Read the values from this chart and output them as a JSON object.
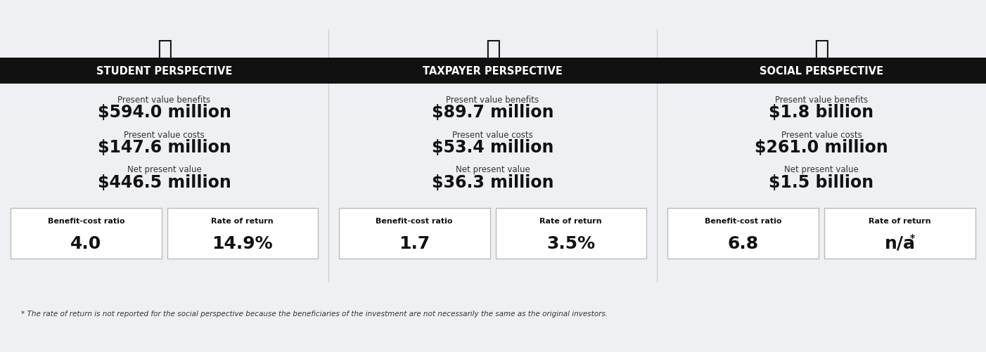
{
  "bg_color": "#eef0f3",
  "header_bg": "#111111",
  "header_text_color": "#ffffff",
  "white": "#ffffff",
  "dark": "#111111",
  "perspectives": [
    "STUDENT PERSPECTIVE",
    "TAXPAYER PERSPECTIVE",
    "SOCIAL PERSPECTIVE"
  ],
  "pv_benefits_label": "Present value benefits",
  "pv_costs_label": "Present value costs",
  "npv_label": "Net present value",
  "bcr_label": "Benefit-cost ratio",
  "ror_label": "Rate of return",
  "pv_benefits": [
    "$594.0 million",
    "$89.7 million",
    "$1.8 billion"
  ],
  "pv_costs": [
    "$147.6 million",
    "$53.4 million",
    "$261.0 million"
  ],
  "npv": [
    "$446.5 million",
    "$36.3 million",
    "$1.5 billion"
  ],
  "bcr": [
    "4.0",
    "1.7",
    "6.8"
  ],
  "ror": [
    "14.9%",
    "3.5%",
    "n/a*"
  ],
  "footnote": "* The rate of return is not reported for the social perspective because the beneficiaries of the investment are not necessarily the same as the original investors."
}
